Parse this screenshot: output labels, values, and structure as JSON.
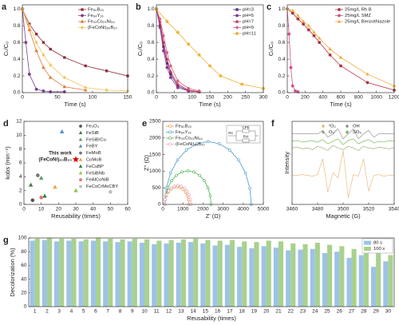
{
  "chart_data": [
    {
      "type": "line",
      "panel_label": "a",
      "xlabel": "Time (s)",
      "ylabel": "Cₜ/C₀",
      "xlim": [
        0,
        150
      ],
      "xticks": [
        0,
        50,
        100,
        150
      ],
      "ylim": [
        0,
        1.05
      ],
      "yticks": [
        {
          "value": 0,
          "label": "0.0"
        },
        0.2,
        0.4,
        0.6,
        0.8,
        {
          "value": 1,
          "label": "1.0"
        }
      ],
      "legend": "upper right",
      "series": [
        {
          "name": "Fe₈₀B₂₀",
          "color": "#8b2d3a",
          "marker": "square",
          "x": [
            0,
            10,
            20,
            30,
            40,
            60,
            90,
            120,
            150
          ],
          "values": [
            1.0,
            0.82,
            0.7,
            0.6,
            0.52,
            0.42,
            0.32,
            0.26,
            0.2
          ]
        },
        {
          "name": "Fe₈₄Y₁₆",
          "color": "#7b3f8c",
          "marker": "circle",
          "x": [
            0,
            5,
            10,
            20,
            30,
            40,
            60
          ],
          "values": [
            1.0,
            0.6,
            0.22,
            0.04,
            0.02,
            0.01,
            0.01
          ]
        },
        {
          "name": "Fe₄₃Co₂₃Ni₃₄",
          "color": "#e0763a",
          "marker": "triangle",
          "x": [
            0,
            10,
            20,
            30,
            40,
            60,
            90
          ],
          "values": [
            1.0,
            0.75,
            0.5,
            0.3,
            0.18,
            0.07,
            0.03
          ]
        },
        {
          "name": "(FeCoNi)₈₀B₂₀",
          "color": "#f2c45a",
          "marker": "diamond",
          "x": [
            0,
            10,
            20,
            30,
            40,
            60,
            90,
            120,
            150
          ],
          "values": [
            1.0,
            0.8,
            0.6,
            0.45,
            0.33,
            0.18,
            0.06,
            0.03,
            0.02
          ]
        }
      ]
    },
    {
      "type": "line",
      "panel_label": "b",
      "xlabel": "Time (s)",
      "ylabel": "Cₜ/C₀",
      "xlim": [
        0,
        300
      ],
      "xticks": [
        0,
        50,
        100,
        150,
        200,
        250,
        300
      ],
      "ylim": [
        0,
        1.05
      ],
      "yticks": [
        {
          "value": 0,
          "label": "0.0"
        },
        0.2,
        0.4,
        0.6,
        0.8,
        {
          "value": 1,
          "label": "1.0"
        }
      ],
      "legend": "upper right",
      "series": [
        {
          "name": "pH=3",
          "color": "#4b2d7a",
          "marker": "square",
          "x": [
            0,
            10,
            20,
            30,
            40,
            60,
            90,
            120
          ],
          "values": [
            1.0,
            0.8,
            0.55,
            0.35,
            0.22,
            0.08,
            0.02,
            0.01
          ]
        },
        {
          "name": "pH=5",
          "color": "#8b3a8f",
          "marker": "circle",
          "x": [
            0,
            10,
            20,
            30,
            40,
            60,
            90,
            120
          ],
          "values": [
            1.0,
            0.78,
            0.5,
            0.3,
            0.18,
            0.06,
            0.02,
            0.01
          ]
        },
        {
          "name": "pH=7",
          "color": "#c0305a",
          "marker": "triangle",
          "x": [
            0,
            10,
            20,
            30,
            40,
            60,
            90,
            120
          ],
          "values": [
            1.0,
            0.85,
            0.6,
            0.4,
            0.25,
            0.1,
            0.03,
            0.01
          ]
        },
        {
          "name": "pH=9",
          "color": "#d85a7a",
          "marker": "diamond",
          "x": [
            0,
            10,
            20,
            30,
            40,
            60,
            90,
            120
          ],
          "values": [
            1.0,
            0.88,
            0.68,
            0.48,
            0.32,
            0.14,
            0.05,
            0.02
          ]
        },
        {
          "name": "pH=11",
          "color": "#f0b030",
          "marker": "circle",
          "x": [
            0,
            30,
            60,
            90,
            120,
            150,
            180,
            240,
            300
          ],
          "values": [
            1.0,
            0.85,
            0.72,
            0.58,
            0.45,
            0.32,
            0.2,
            0.1,
            0.05
          ]
        }
      ]
    },
    {
      "type": "line",
      "panel_label": "c",
      "xlabel": "Time (s)",
      "ylabel": "Cₜ/C₀",
      "xlim": [
        0,
        1200
      ],
      "xticks": [
        0,
        200,
        400,
        600,
        800,
        1000,
        1200
      ],
      "ylim": [
        0,
        1.05
      ],
      "yticks": [
        {
          "value": 0,
          "label": "0.0"
        },
        0.2,
        0.4,
        0.6,
        0.8,
        {
          "value": 1,
          "label": "1.0"
        }
      ],
      "legend": "upper right",
      "series": [
        {
          "name": "25mg/L Rh B",
          "color": "#b03040",
          "marker": "circle",
          "x": [
            0,
            60,
            120,
            180,
            240,
            300,
            360,
            480,
            600,
            900,
            1200
          ],
          "values": [
            1.0,
            0.95,
            0.88,
            0.82,
            0.75,
            0.68,
            0.6,
            0.45,
            0.32,
            0.12,
            0.03
          ]
        },
        {
          "name": "25mg/L SMZ",
          "color": "#d0508a",
          "marker": "circle",
          "x": [
            0,
            20,
            40,
            60,
            90,
            120
          ],
          "values": [
            1.0,
            0.7,
            0.3,
            0.08,
            0.02,
            0.01
          ]
        },
        {
          "name": "25mg/L Benzothiazole",
          "color": "#f0b040",
          "marker": "triangle",
          "x": [
            0,
            60,
            120,
            180,
            240,
            300,
            360,
            480,
            600,
            900,
            1200
          ],
          "values": [
            1.0,
            0.98,
            0.92,
            0.85,
            0.8,
            0.72,
            0.65,
            0.52,
            0.42,
            0.22,
            0.08
          ]
        }
      ]
    },
    {
      "type": "scatter",
      "panel_label": "d",
      "xlabel": "Reusability (times)",
      "ylabel": "kobs (min⁻¹)",
      "xlim": [
        0,
        60
      ],
      "xticks": [
        0,
        10,
        20,
        30,
        40,
        50,
        60
      ],
      "ylim": [
        0,
        12
      ],
      "yticks": [
        0,
        2,
        4,
        6,
        8,
        10,
        12
      ],
      "legend": "upper right",
      "annotations": [
        {
          "text": "(FeCoNi)₈₀B₂₀",
          "color": "#d00000"
        }
      ],
      "series": [
        {
          "name": "Fe₃O₄",
          "color": "#555555",
          "marker": "circle",
          "x": [
            5
          ],
          "values": [
            0.6
          ]
        },
        {
          "name": "FeSiB",
          "color": "#3a7d44",
          "marker": "triangle",
          "x": [
            4
          ],
          "values": [
            2.8
          ]
        },
        {
          "name": "FeSiB/Cu",
          "color": "#5aa05a",
          "marker": "triangle",
          "x": [
            10
          ],
          "values": [
            3.8
          ]
        },
        {
          "name": "FeBY",
          "color": "#4a90c0",
          "marker": "triangle",
          "x": [
            22
          ],
          "values": [
            10.5
          ]
        },
        {
          "name": "FeMoB",
          "color": "#777777",
          "marker": "circle",
          "x": [
            8
          ],
          "values": [
            4.2
          ]
        },
        {
          "name": "CoMoB",
          "color": "#f0a040",
          "marker": "triangle",
          "x": [
            18
          ],
          "values": [
            2.5
          ]
        },
        {
          "name": "FeCuBP",
          "color": "#2e7d32",
          "marker": "triangle",
          "x": [
            12
          ],
          "values": [
            1.2
          ]
        },
        {
          "name": "FeSiBNb",
          "color": "#8bc34a",
          "marker": "triangle",
          "x": [
            30
          ],
          "values": [
            2.0
          ]
        },
        {
          "name": "FeAlCoNiB",
          "color": "#e57373",
          "marker": "circle",
          "x": [
            10
          ],
          "values": [
            1.0
          ]
        },
        {
          "name": "FeCoCrMoCBY",
          "color": "#bdbdbd",
          "marker": "circle",
          "x": [
            50
          ],
          "values": [
            1.8
          ]
        },
        {
          "name": "This work",
          "color": "#d00000",
          "marker": "star",
          "label_at_point": true,
          "x": [
            30
          ],
          "values": [
            6.5
          ]
        }
      ]
    },
    {
      "type": "line",
      "panel_label": "e",
      "xlabel": "Z' (Ω)",
      "ylabel": "Z'' (Ω)",
      "xlim": [
        0,
        5000
      ],
      "xticks": [
        0,
        1000,
        2000,
        3000,
        4000,
        5000
      ],
      "ylim": [
        0,
        2500
      ],
      "yticks": [
        0,
        500,
        1000,
        1500,
        2000,
        2500
      ],
      "legend": "upper left",
      "open_markers": true,
      "annotations": [
        {
          "text": "CPE",
          "color": "#222222"
        },
        {
          "text": "Rs",
          "color": "#222222"
        },
        {
          "text": "Rct",
          "color": "#222222"
        }
      ],
      "series": [
        {
          "name": "Fe₈₀B₂₀",
          "color": "#e8963a",
          "marker": "circle",
          "x": [
            100,
            120,
            180,
            276,
            400,
            545,
            700,
            855,
            1000,
            1124,
            1220,
            1280,
            1300
          ],
          "values": [
            0,
            137,
            264,
            373,
            457,
            510,
            528,
            510,
            457,
            373,
            264,
            137,
            0
          ]
        },
        {
          "name": "Fe₈₄Y₁₆",
          "color": "#4a9ac8",
          "marker": "circle",
          "x": [
            100,
            173,
            388,
            730,
            1175,
            1693,
            2250,
            2807,
            3325,
            3770,
            4112,
            4327,
            4400
          ],
          "values": [
            0,
            490,
            946,
            1338,
            1638,
            1828,
            1892,
            1828,
            1638,
            1338,
            946,
            490,
            0
          ]
        },
        {
          "name": "Fe₄₃Co₂₃Ni₃₄",
          "color": "#4caf50",
          "marker": "circle",
          "x": [
            100,
            139,
            256,
            437,
            675,
            952,
            1250,
            1548,
            1825,
            2063,
            2244,
            2361,
            2400
          ],
          "values": [
            0,
            262,
            506,
            716,
            876,
            977,
            1012,
            977,
            876,
            716,
            506,
            262,
            0
          ]
        },
        {
          "name": "(FeCoNi)₈₀B₂₀",
          "color": "#e8a0b8",
          "marker": "circle",
          "x": [
            100,
            122,
            187,
            290,
            425,
            582,
            750,
            918,
            1075,
            1210,
            1313,
            1378,
            1400
          ],
          "values": [
            0,
            148,
            286,
            404,
            495,
            552,
            572,
            552,
            495,
            404,
            286,
            148,
            0
          ]
        }
      ]
    },
    {
      "type": "line",
      "panel_label": "f",
      "xlabel": "Magnetic (G)",
      "ylabel": "Intensity",
      "xlim": [
        3460,
        3540
      ],
      "xticks": [
        3460,
        3480,
        3500,
        3520,
        3540
      ],
      "ylim": [
        0,
        10
      ],
      "markers": false,
      "legend": "upper center",
      "legend_columns": 2,
      "series": [
        {
          "name": "¹O₂",
          "color": "#e8b070",
          "marker": "diamond",
          "x": [
            3460,
            3464,
            3468,
            3472,
            3476,
            3480,
            3484,
            3488,
            3492,
            3496,
            3500,
            3504,
            3508,
            3512,
            3516,
            3520,
            3524,
            3528,
            3532,
            3536,
            3540
          ],
          "values": [
            3.5,
            3.5,
            3.6,
            3.5,
            3.4,
            3.6,
            5.5,
            1.5,
            3.8,
            3.2,
            6.5,
            0.8,
            3.6,
            3.4,
            5.5,
            1.6,
            3.5,
            3.6,
            3.4,
            3.5,
            3.5
          ]
        },
        {
          "name": "OH",
          "color": "#888888",
          "marker": "diamond",
          "x": [
            3460,
            3464,
            3468,
            3472,
            3476,
            3480,
            3484,
            3488,
            3492,
            3496,
            3500,
            3504,
            3508,
            3512,
            3516,
            3520,
            3524,
            3528,
            3532,
            3536,
            3540
          ],
          "values": [
            8.5,
            8.5,
            8.5,
            8.5,
            8.5,
            8.5,
            8.9,
            8.1,
            8.5,
            9.1,
            7.9,
            8.5,
            9.1,
            7.9,
            8.5,
            8.9,
            8.1,
            8.5,
            8.5,
            8.5,
            8.5
          ]
        },
        {
          "name": "O₂⁻",
          "color": "#8fa860",
          "marker": "diamond",
          "x": [
            3460,
            3464,
            3468,
            3472,
            3476,
            3480,
            3484,
            3488,
            3492,
            3496,
            3500,
            3504,
            3508,
            3512,
            3516,
            3520,
            3524,
            3528,
            3532,
            3536,
            3540
          ],
          "values": [
            6.8,
            6.9,
            6.7,
            6.8,
            6.6,
            7.0,
            6.8,
            6.5,
            7.1,
            6.8,
            6.6,
            7.0,
            6.8,
            6.5,
            7.0,
            6.8,
            6.7,
            6.9,
            6.8,
            6.7,
            6.8
          ]
        },
        {
          "name": "SO₄",
          "color": "#6ab04c",
          "marker": "diamond",
          "x": [
            3460,
            3464,
            3468,
            3472,
            3476,
            3480,
            3484,
            3488,
            3492,
            3496,
            3500,
            3504,
            3508,
            3512,
            3516,
            3520,
            3524,
            3528,
            3532,
            3536,
            3540
          ],
          "values": [
            7.6,
            7.7,
            7.5,
            7.6,
            7.7,
            7.5,
            7.8,
            7.3,
            7.6,
            7.9,
            7.2,
            7.7,
            7.9,
            7.3,
            7.6,
            7.8,
            7.4,
            7.6,
            7.5,
            7.7,
            7.6
          ]
        }
      ]
    },
    {
      "type": "bar",
      "panel_label": "g",
      "xlabel": "Reusability (times)",
      "ylabel": "Decolorization (%)",
      "categories": [
        1,
        2,
        3,
        4,
        5,
        6,
        7,
        8,
        9,
        10,
        11,
        12,
        13,
        14,
        15,
        16,
        17,
        18,
        19,
        20,
        21,
        22,
        23,
        24,
        25,
        26,
        27,
        28,
        29,
        30
      ],
      "ylim": [
        0,
        100
      ],
      "yticks": [
        0,
        20,
        40,
        60,
        80,
        100
      ],
      "legend": "upper right",
      "legend_frame": true,
      "series": [
        {
          "name": "80 s",
          "color": "#9dc3e6",
          "values": [
            96,
            97,
            95,
            96,
            95,
            96,
            95,
            94,
            95,
            93,
            91,
            92,
            93,
            94,
            92,
            89,
            90,
            87,
            85,
            88,
            86,
            82,
            83,
            84,
            78,
            80,
            71,
            75,
            58,
            66
          ]
        },
        {
          "name": "100 s",
          "color": "#a9d18e",
          "values": [
            99,
            100,
            99,
            99,
            98,
            100,
            99,
            98,
            99,
            98,
            96,
            97,
            98,
            99,
            97,
            96,
            97,
            95,
            94,
            96,
            95,
            92,
            91,
            93,
            90,
            88,
            84,
            87,
            80,
            75
          ]
        }
      ]
    }
  ]
}
